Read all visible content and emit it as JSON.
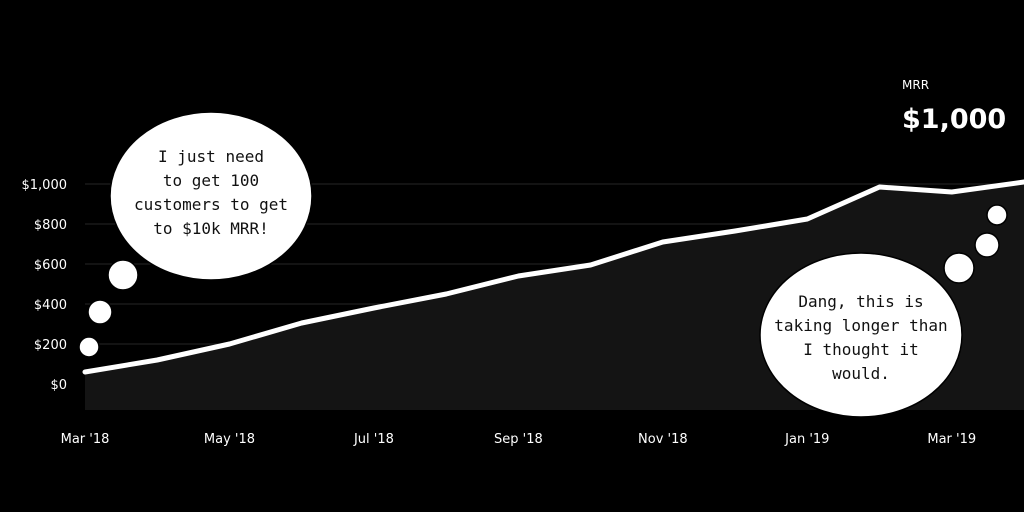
{
  "chart_data": {
    "type": "area",
    "title": "",
    "xlabel": "",
    "ylabel": "",
    "x_tick_labels": [
      "Mar '18",
      "May '18",
      "Jul '18",
      "Sep '18",
      "Nov '18",
      "Jan '19",
      "Mar '19"
    ],
    "y_tick_labels": [
      "$0",
      "$200",
      "$400",
      "$600",
      "$800",
      "$1,000"
    ],
    "ylim": [
      0,
      1000
    ],
    "grid": true,
    "x": [
      0,
      1,
      2,
      3,
      4,
      5,
      6,
      7,
      8,
      9,
      10,
      11,
      12,
      13
    ],
    "values": [
      60,
      120,
      200,
      305,
      380,
      450,
      540,
      595,
      710,
      765,
      825,
      985,
      960,
      1010
    ],
    "line_color": "#ffffff",
    "fill_color": "#141414",
    "grid_color": "#262626"
  },
  "mrr": {
    "label": "MRR",
    "value": "$1,000"
  },
  "bubbles": {
    "left_lines": [
      "I just need",
      "to get 100",
      "customers to get",
      "to $10k MRR!"
    ],
    "right_lines": [
      "Dang, this is",
      "taking longer than",
      "I thought it",
      "would."
    ]
  }
}
